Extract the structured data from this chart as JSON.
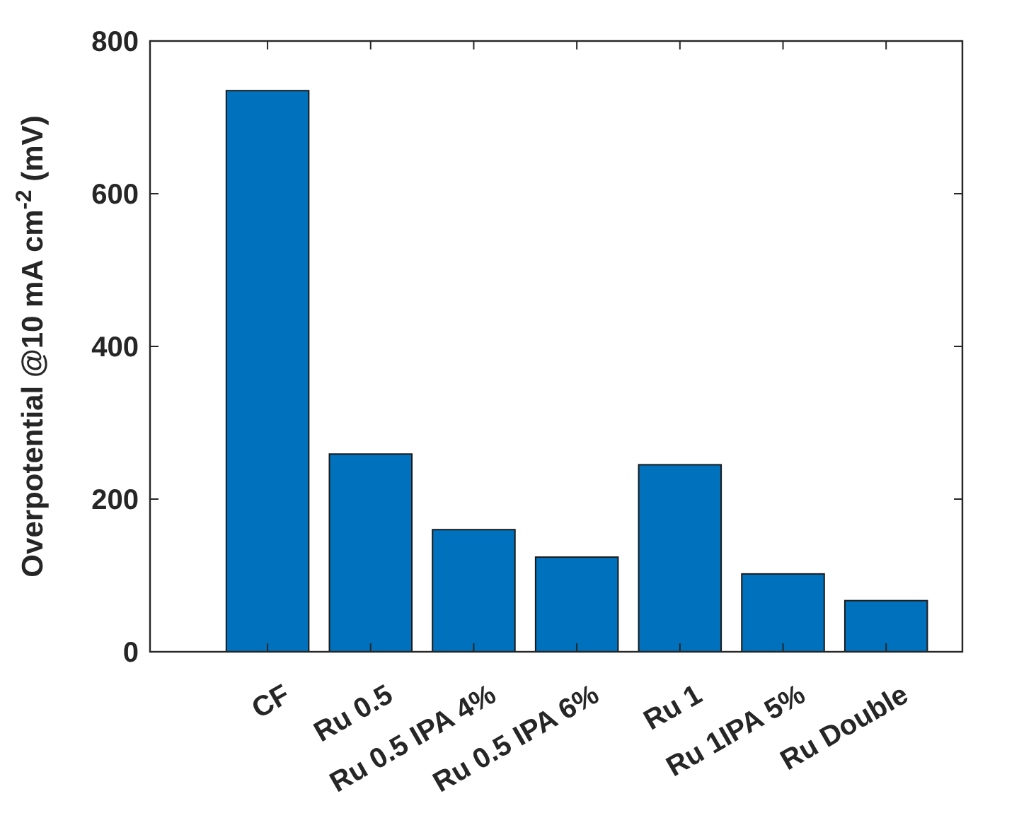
{
  "chart_data": {
    "type": "bar",
    "ylabel": "Overpotential @10 mA cm$^{-2}$ (mV)",
    "categories": [
      "CF",
      "Ru 0.5",
      "Ru 0.5 IPA 4%",
      "Ru 0.5 IPA 6%",
      "Ru 1",
      "Ru 1IPA 5%",
      "Ru Double"
    ],
    "values": [
      735,
      259,
      160,
      124,
      245,
      102,
      67
    ],
    "color": "#0072bd",
    "ylim": [
      0,
      800
    ],
    "yticks": [
      0,
      200,
      400,
      600,
      800
    ],
    "grid": false
  }
}
